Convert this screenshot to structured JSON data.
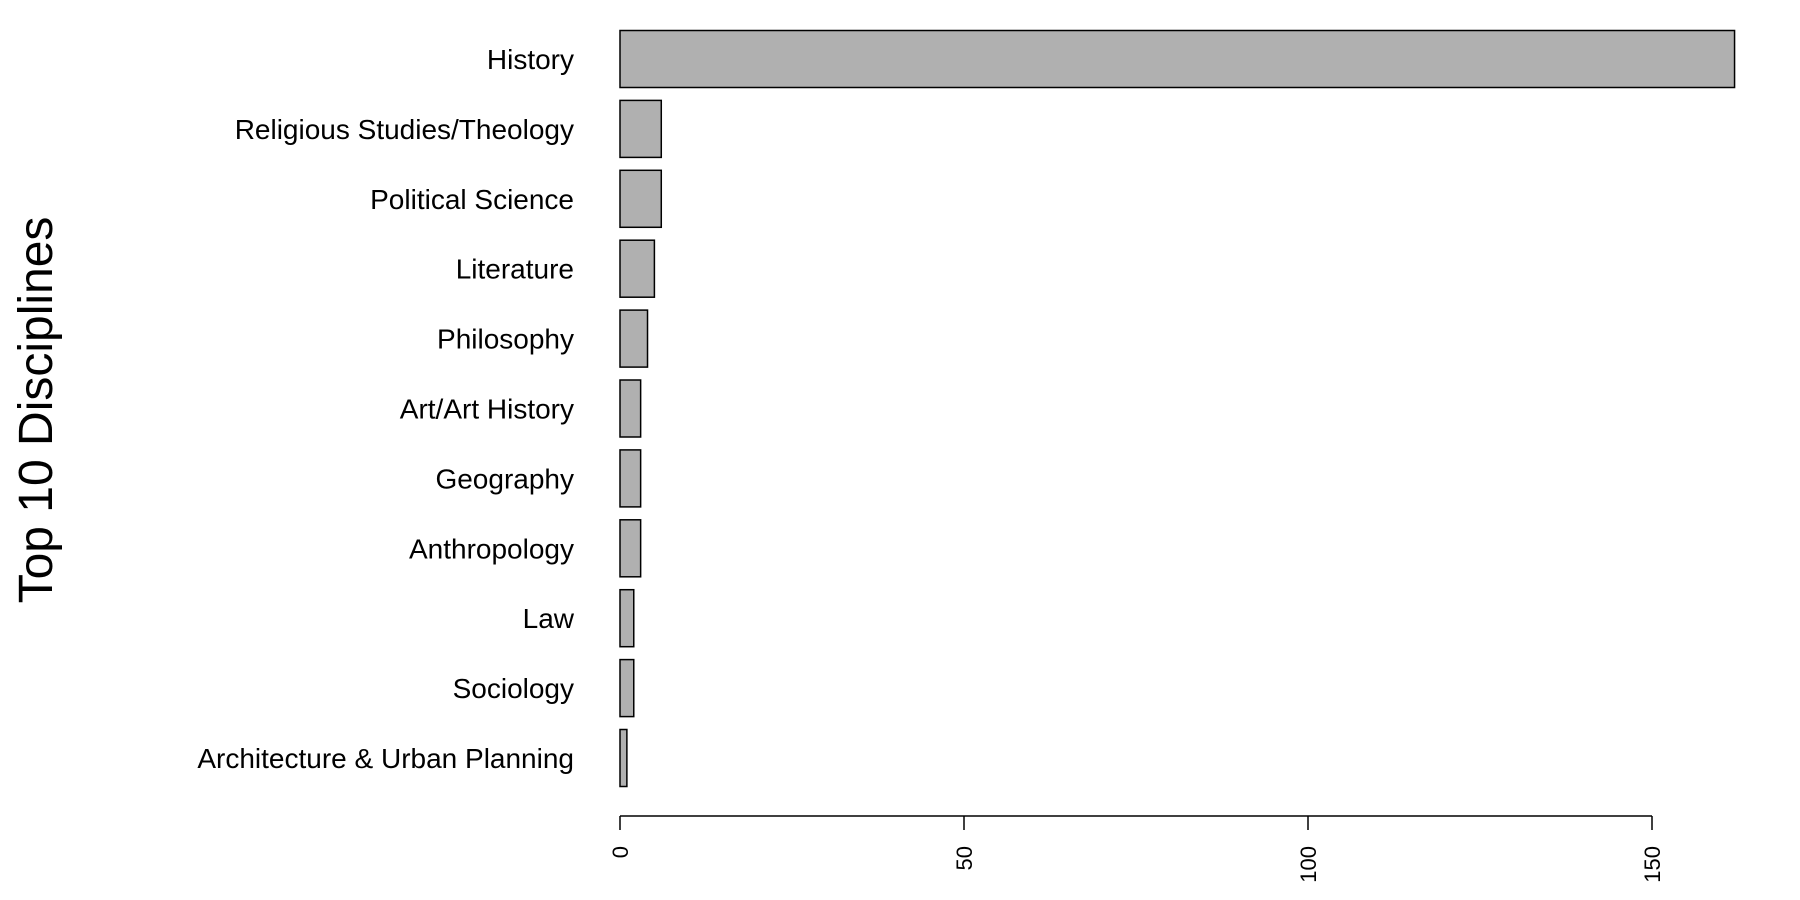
{
  "chart_data": {
    "type": "bar",
    "orientation": "horizontal",
    "ylabel": "Top 10 Disciplines",
    "xlabel": "",
    "title": "",
    "categories": [
      "History",
      "Religious Studies/Theology",
      "Political Science",
      "Literature",
      "Philosophy",
      "Art/Art History",
      "Geography",
      "Anthropology",
      "Law",
      "Sociology",
      "Architecture & Urban Planning"
    ],
    "values": [
      162,
      6,
      6,
      5,
      4,
      3,
      3,
      3,
      2,
      2,
      1
    ],
    "xlim": [
      0,
      162
    ],
    "x_ticks": [
      0,
      50,
      100,
      150
    ],
    "grid": false,
    "bar_color": "#b0b0b0"
  }
}
